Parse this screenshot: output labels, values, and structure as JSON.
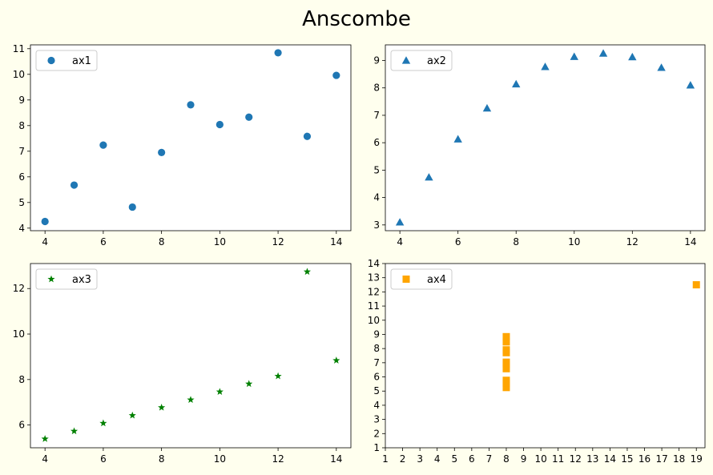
{
  "figure": {
    "title": "Anscombe",
    "background": "#ffffee"
  },
  "chart_data": [
    {
      "type": "scatter",
      "name": "ax1",
      "marker": "circle",
      "color": "#1f77b4",
      "legend": "top-left",
      "xlim": [
        3.5,
        14.5
      ],
      "ylim": [
        3.9,
        11.15
      ],
      "xticks": [
        4,
        6,
        8,
        10,
        12,
        14
      ],
      "yticks": [
        4,
        5,
        6,
        7,
        8,
        9,
        10,
        11
      ],
      "series": [
        {
          "name": "ax1",
          "x": [
            10,
            8,
            13,
            9,
            11,
            14,
            6,
            4,
            12,
            7,
            5
          ],
          "y": [
            8.04,
            6.95,
            7.58,
            8.81,
            8.33,
            9.96,
            7.24,
            4.26,
            10.84,
            4.82,
            5.68
          ]
        }
      ]
    },
    {
      "type": "scatter",
      "name": "ax2",
      "marker": "triangle",
      "color": "#1f77b4",
      "legend": "top-left",
      "xlim": [
        3.5,
        14.5
      ],
      "ylim": [
        2.79,
        9.57
      ],
      "xticks": [
        4,
        6,
        8,
        10,
        12,
        14
      ],
      "yticks": [
        3,
        4,
        5,
        6,
        7,
        8,
        9
      ],
      "series": [
        {
          "name": "ax2",
          "x": [
            10,
            8,
            13,
            9,
            11,
            14,
            6,
            4,
            12,
            7,
            5
          ],
          "y": [
            9.14,
            8.14,
            8.74,
            8.77,
            9.26,
            8.1,
            6.13,
            3.1,
            9.13,
            7.26,
            4.74
          ]
        }
      ]
    },
    {
      "type": "scatter",
      "name": "ax3",
      "marker": "star",
      "color": "#008000",
      "legend": "top-left",
      "xlim": [
        3.5,
        14.5
      ],
      "ylim": [
        5.0,
        13.1
      ],
      "xticks": [
        4,
        6,
        8,
        10,
        12,
        14
      ],
      "yticks": [
        6,
        8,
        10,
        12
      ],
      "series": [
        {
          "name": "ax3",
          "x": [
            10,
            8,
            13,
            9,
            11,
            14,
            6,
            4,
            12,
            7,
            5
          ],
          "y": [
            7.46,
            6.77,
            12.74,
            7.11,
            7.81,
            8.84,
            6.08,
            5.39,
            8.15,
            6.42,
            5.73
          ]
        }
      ]
    },
    {
      "type": "scatter",
      "name": "ax4",
      "marker": "square",
      "color": "#ffa500",
      "legend": "top-left",
      "xlim": [
        1,
        19.5
      ],
      "ylim": [
        1,
        14
      ],
      "xticks": [
        1,
        2,
        3,
        4,
        5,
        6,
        7,
        8,
        9,
        10,
        11,
        12,
        13,
        14,
        15,
        16,
        17,
        18,
        19
      ],
      "yticks": [
        1,
        2,
        3,
        4,
        5,
        6,
        7,
        8,
        9,
        10,
        11,
        12,
        13,
        14
      ],
      "series": [
        {
          "name": "ax4",
          "x": [
            8,
            8,
            8,
            8,
            8,
            8,
            8,
            19,
            8,
            8,
            8
          ],
          "y": [
            6.58,
            5.76,
            7.71,
            8.84,
            8.47,
            7.04,
            5.25,
            12.5,
            5.56,
            7.91,
            6.89
          ]
        }
      ]
    }
  ]
}
